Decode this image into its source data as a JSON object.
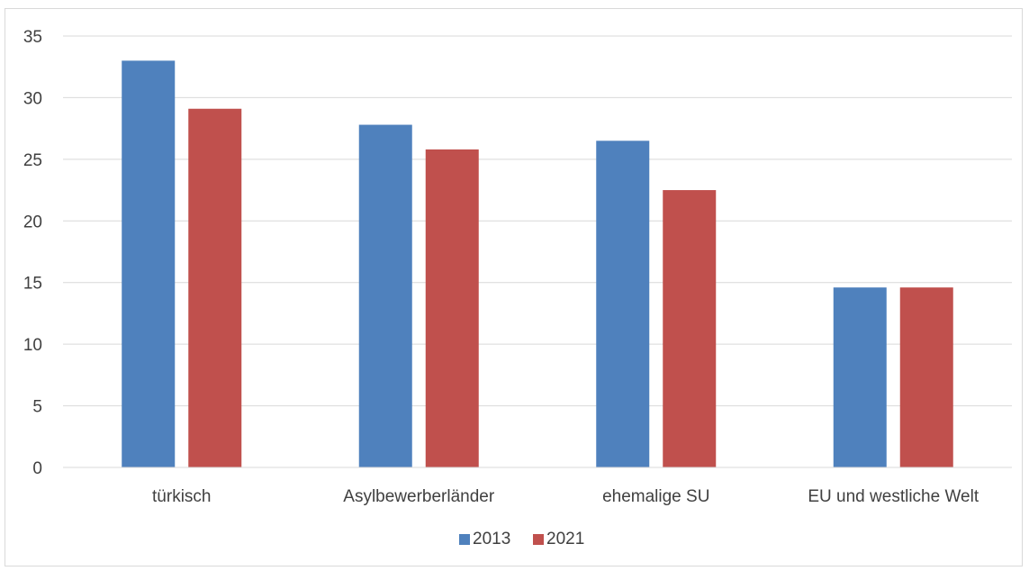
{
  "chart_data": {
    "type": "bar",
    "categories": [
      "türkisch",
      "Asylbewerberländer",
      "ehemalige SU",
      "EU und westliche Welt"
    ],
    "series": [
      {
        "name": "2013",
        "values": [
          33.0,
          27.8,
          26.5,
          14.6
        ],
        "color": "#4f81bd"
      },
      {
        "name": "2021",
        "values": [
          29.1,
          25.8,
          22.5,
          14.6
        ],
        "color": "#c0504d"
      }
    ],
    "ylim": [
      0,
      35
    ],
    "yticks": [
      0,
      5,
      10,
      15,
      20,
      25,
      30,
      35
    ],
    "grid": true,
    "gridline_color": "#d9d9d9",
    "legend_position": "bottom"
  }
}
